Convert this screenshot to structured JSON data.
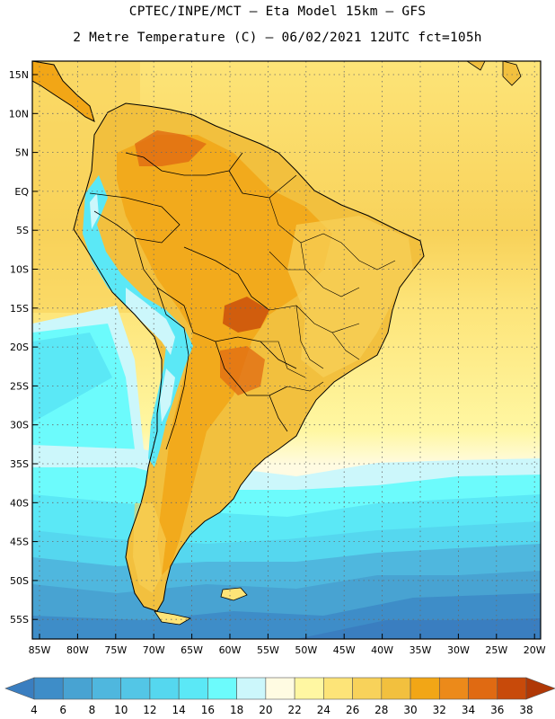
{
  "header": {
    "line1": "CPTEC/INPE/MCT –  Eta Model 15km – GFS",
    "line2": "2 Metre Temperature (C) – 06/02/2021 12UTC fct=105h"
  },
  "map": {
    "lat_labels": [
      "15N",
      "10N",
      "5N",
      "EQ",
      "5S",
      "10S",
      "15S",
      "20S",
      "25S",
      "30S",
      "35S",
      "40S",
      "45S",
      "50S",
      "55S"
    ],
    "lon_labels": [
      "85W",
      "80W",
      "75W",
      "70W",
      "65W",
      "60W",
      "55W",
      "50W",
      "45W",
      "40W",
      "35W",
      "30W",
      "25W",
      "20W"
    ]
  },
  "colorbar": {
    "labels": [
      "4",
      "6",
      "8",
      "10",
      "12",
      "14",
      "16",
      "18",
      "20",
      "22",
      "24",
      "26",
      "28",
      "30",
      "32",
      "34",
      "36",
      "38"
    ],
    "colors": [
      "#3a7ec0",
      "#3e8dc8",
      "#48a3d2",
      "#4fb7de",
      "#53c6e6",
      "#55d7ef",
      "#5be8f6",
      "#6cfbfc",
      "#ccf7fb",
      "#fffbe2",
      "#fff7a2",
      "#fde478",
      "#f8d25a",
      "#f2c03e",
      "#f2a616",
      "#ec8a1a",
      "#e06a12",
      "#c84a0a",
      "#b03806"
    ]
  }
}
